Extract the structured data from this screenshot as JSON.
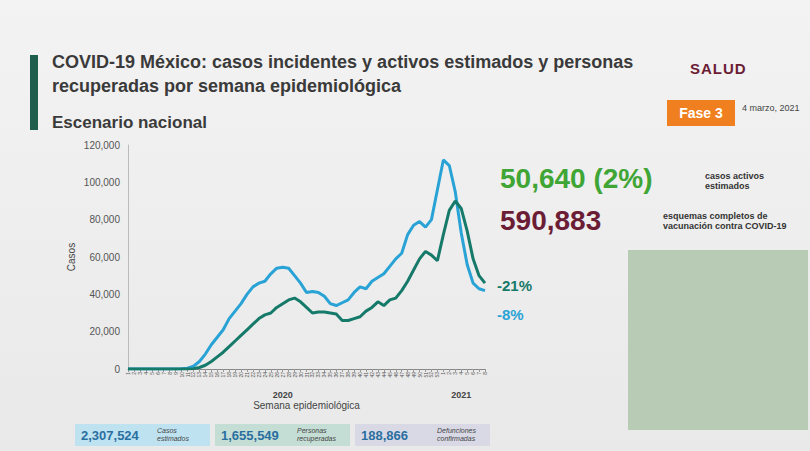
{
  "header": {
    "logo": "SALUD",
    "phase": "Fase 3",
    "date": "4 marzo, 2021"
  },
  "chart_data": {
    "type": "line",
    "title": "COVID-19 México: casos incidentes y activos estimados y personas recuperadas por semana epidemiológica",
    "subtitle": "Escenario nacional",
    "x_label": "Semana epidemiológica",
    "y_label": "Casos",
    "categories": [
      "1",
      "2",
      "3",
      "4",
      "5",
      "6",
      "7",
      "8",
      "9",
      "10",
      "11",
      "12",
      "13",
      "14",
      "15",
      "16",
      "17",
      "18",
      "19",
      "20",
      "21",
      "22",
      "23",
      "24",
      "25",
      "26",
      "27",
      "28",
      "29",
      "30",
      "31",
      "32",
      "33",
      "34",
      "35",
      "36",
      "37",
      "38",
      "39",
      "40",
      "41",
      "42",
      "43",
      "44",
      "45",
      "46",
      "47",
      "48",
      "49",
      "50",
      "51",
      "52",
      "53",
      "1",
      "2",
      "3",
      "4",
      "5",
      "6",
      "7",
      "8"
    ],
    "year_labels": [
      null,
      null,
      null,
      null,
      null,
      null,
      null,
      null,
      null,
      null,
      null,
      null,
      null,
      null,
      null,
      null,
      null,
      null,
      null,
      null,
      null,
      null,
      null,
      null,
      null,
      null,
      "2020",
      null,
      null,
      null,
      null,
      null,
      null,
      null,
      null,
      null,
      null,
      null,
      null,
      null,
      null,
      null,
      null,
      null,
      null,
      null,
      null,
      null,
      null,
      null,
      null,
      null,
      null,
      null,
      null,
      null,
      "2021",
      null,
      null,
      null,
      null
    ],
    "series": [
      {
        "color": "#29a3d6",
        "end_label": "-8%",
        "values": [
          0,
          0,
          0,
          0,
          0,
          0,
          0,
          0,
          0,
          100,
          400,
          1500,
          4000,
          8000,
          13000,
          17000,
          21000,
          27000,
          31000,
          35000,
          40000,
          44000,
          46000,
          47000,
          51000,
          54000,
          54500,
          54000,
          50000,
          46000,
          41000,
          41500,
          41000,
          39000,
          35000,
          34000,
          35500,
          37000,
          41000,
          44000,
          43000,
          47000,
          49000,
          51000,
          55000,
          59000,
          62000,
          72000,
          77000,
          79000,
          76000,
          80000,
          96000,
          112000,
          109000,
          95000,
          73000,
          56000,
          46000,
          43000,
          42000
        ]
      },
      {
        "color": "#167a6a",
        "end_label": "-21%",
        "values": [
          0,
          0,
          0,
          0,
          0,
          0,
          0,
          0,
          0,
          0,
          0,
          200,
          800,
          2000,
          4000,
          6500,
          9000,
          12000,
          15000,
          18000,
          21000,
          24000,
          27000,
          29000,
          30000,
          33000,
          35000,
          37000,
          38000,
          36000,
          33000,
          30000,
          30500,
          30500,
          30000,
          29500,
          26000,
          26000,
          27000,
          28000,
          31000,
          33000,
          36000,
          34000,
          37000,
          38000,
          42000,
          47000,
          53000,
          59000,
          63000,
          61000,
          58000,
          72000,
          85000,
          90000,
          86000,
          74000,
          59000,
          50000,
          46000
        ]
      }
    ],
    "ylim": [
      0,
      120000
    ],
    "yticks": [
      0,
      {
        "value": 20000,
        "label": "20,000"
      },
      {
        "value": 40000,
        "label": "40,000"
      },
      {
        "value": 60000,
        "label": "60,000"
      },
      {
        "value": 80000,
        "label": "80,000"
      },
      {
        "value": 100000,
        "label": "100,000"
      },
      {
        "value": 120000,
        "label": "120,000"
      }
    ],
    "grid": false
  },
  "highlights": [
    {
      "value": "50,640 (2%)",
      "label": "casos activos estimados",
      "color": "#3fa535"
    },
    {
      "value": "590,883",
      "label": "esquemas completos de vacunación contra COVID-19",
      "color": "#6b1d35"
    }
  ],
  "footer": [
    {
      "value": "2,307,524",
      "label": "Casos estimados",
      "color": "#bfe2f1"
    },
    {
      "value": "1,655,549",
      "label": "Personas recuperadas",
      "color": "#c4ded5"
    },
    {
      "value": "188,866",
      "label": "Defunciones confirmadas",
      "color": "#d9d9e6"
    }
  ]
}
